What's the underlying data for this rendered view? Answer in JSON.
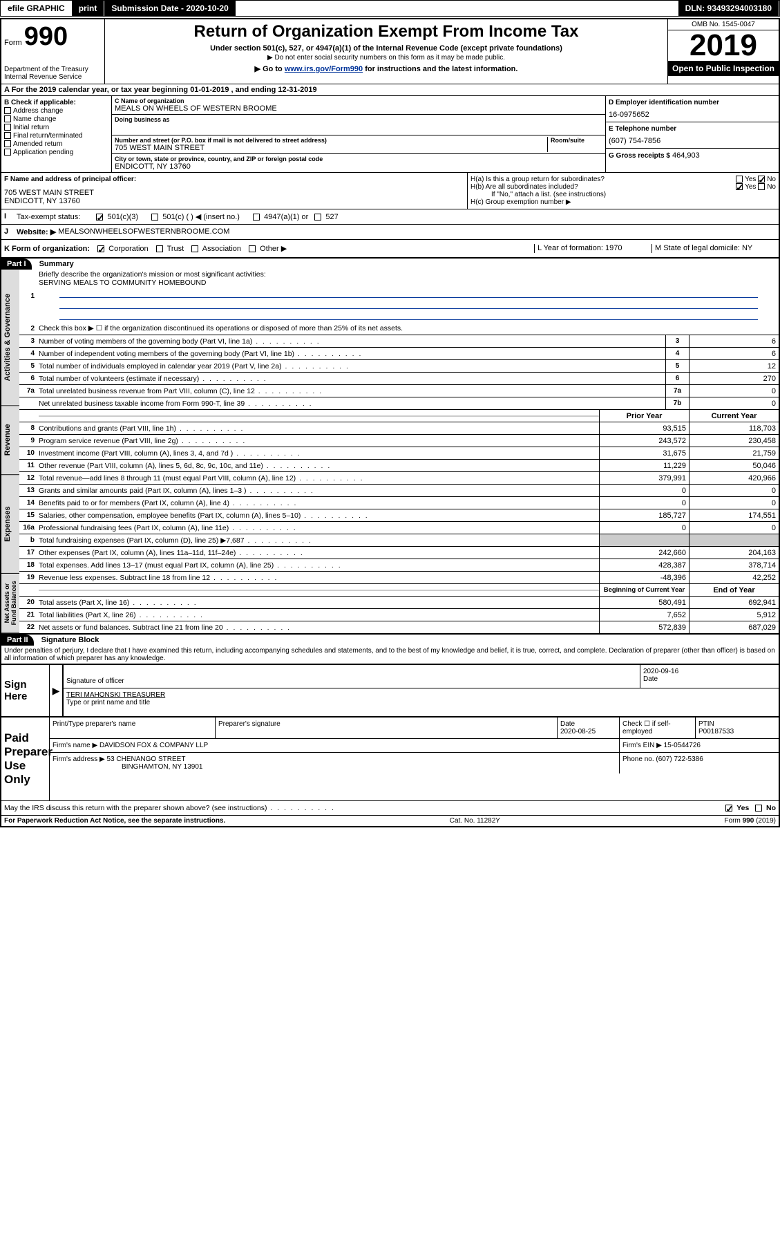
{
  "topbar": {
    "efile": "efile GRAPHIC",
    "print": "print",
    "subdate_label": "Submission Date - 2020-10-20",
    "dln": "DLN: 93493294003180"
  },
  "header": {
    "form_label": "Form",
    "form_num": "990",
    "dept": "Department of the Treasury\nInternal Revenue Service",
    "title": "Return of Organization Exempt From Income Tax",
    "sub1": "Under section 501(c), 527, or 4947(a)(1) of the Internal Revenue Code (except private foundations)",
    "sub2": "▶ Do not enter social security numbers on this form as it may be made public.",
    "goto": "▶ Go to www.irs.gov/Form990 for instructions and the latest information.",
    "omb": "OMB No. 1545-0047",
    "year": "2019",
    "open": "Open to Public Inspection"
  },
  "rowA": "A For the 2019 calendar year, or tax year beginning 01-01-2019   , and ending 12-31-2019",
  "colB": {
    "label": "B Check if applicable:",
    "items": [
      "Address change",
      "Name change",
      "Initial return",
      "Final return/terminated",
      "Amended return",
      "Application pending"
    ]
  },
  "colC": {
    "name_label": "C Name of organization",
    "name": "MEALS ON WHEELS OF WESTERN BROOME",
    "dba_label": "Doing business as",
    "addr_label": "Number and street (or P.O. box if mail is not delivered to street address)",
    "room_label": "Room/suite",
    "addr": "705 WEST MAIN STREET",
    "city_label": "City or town, state or province, country, and ZIP or foreign postal code",
    "city": "ENDICOTT, NY  13760"
  },
  "colD": {
    "ein_label": "D Employer identification number",
    "ein": "16-0975652",
    "tel_label": "E Telephone number",
    "tel": "(607) 754-7856",
    "gross_label": "G Gross receipts $",
    "gross": "464,903"
  },
  "rowF": {
    "label": "F Name and address of principal officer:",
    "addr1": "705 WEST MAIN STREET",
    "addr2": "ENDICOTT, NY  13760"
  },
  "rowH": {
    "ha": "H(a)  Is this a group return for subordinates?",
    "hb": "H(b)  Are all subordinates included?",
    "hb_note": "If \"No,\" attach a list. (see instructions)",
    "hc": "H(c)  Group exemption number ▶"
  },
  "rowI": {
    "label": "Tax-exempt status:",
    "opts": [
      "501(c)(3)",
      "501(c) (  ) ◀ (insert no.)",
      "4947(a)(1) or",
      "527"
    ]
  },
  "rowJ": {
    "label": "Website: ▶",
    "val": "MEALSONWHEELSOFWESTERNBROOME.COM"
  },
  "rowK": {
    "label": "K Form of organization:",
    "opts": [
      "Corporation",
      "Trust",
      "Association",
      "Other ▶"
    ],
    "L": "L Year of formation: 1970",
    "M": "M State of legal domicile: NY"
  },
  "part1": {
    "header": "Part I",
    "title": "Summary",
    "l1": "Briefly describe the organization's mission or most significant activities:",
    "l1v": "SERVING MEALS TO COMMUNITY HOMEBOUND",
    "l2": "Check this box ▶ ☐  if the organization discontinued its operations or disposed of more than 25% of its net assets.",
    "lines_gov": [
      {
        "n": "3",
        "d": "Number of voting members of the governing body (Part VI, line 1a)",
        "ln": "3",
        "v": "6"
      },
      {
        "n": "4",
        "d": "Number of independent voting members of the governing body (Part VI, line 1b)",
        "ln": "4",
        "v": "6"
      },
      {
        "n": "5",
        "d": "Total number of individuals employed in calendar year 2019 (Part V, line 2a)",
        "ln": "5",
        "v": "12"
      },
      {
        "n": "6",
        "d": "Total number of volunteers (estimate if necessary)",
        "ln": "6",
        "v": "270"
      },
      {
        "n": "7a",
        "d": "Total unrelated business revenue from Part VIII, column (C), line 12",
        "ln": "7a",
        "v": "0"
      },
      {
        "n": "",
        "d": "Net unrelated business taxable income from Form 990-T, line 39",
        "ln": "7b",
        "v": "0"
      }
    ],
    "col_prior": "Prior Year",
    "col_current": "Current Year",
    "lines_rev": [
      {
        "n": "8",
        "d": "Contributions and grants (Part VIII, line 1h)",
        "p": "93,515",
        "c": "118,703"
      },
      {
        "n": "9",
        "d": "Program service revenue (Part VIII, line 2g)",
        "p": "243,572",
        "c": "230,458"
      },
      {
        "n": "10",
        "d": "Investment income (Part VIII, column (A), lines 3, 4, and 7d )",
        "p": "31,675",
        "c": "21,759"
      },
      {
        "n": "11",
        "d": "Other revenue (Part VIII, column (A), lines 5, 6d, 8c, 9c, 10c, and 11e)",
        "p": "11,229",
        "c": "50,046"
      },
      {
        "n": "12",
        "d": "Total revenue—add lines 8 through 11 (must equal Part VIII, column (A), line 12)",
        "p": "379,991",
        "c": "420,966"
      }
    ],
    "lines_exp": [
      {
        "n": "13",
        "d": "Grants and similar amounts paid (Part IX, column (A), lines 1–3 )",
        "p": "0",
        "c": "0"
      },
      {
        "n": "14",
        "d": "Benefits paid to or for members (Part IX, column (A), line 4)",
        "p": "0",
        "c": "0"
      },
      {
        "n": "15",
        "d": "Salaries, other compensation, employee benefits (Part IX, column (A), lines 5–10)",
        "p": "185,727",
        "c": "174,551"
      },
      {
        "n": "16a",
        "d": "Professional fundraising fees (Part IX, column (A), line 11e)",
        "p": "0",
        "c": "0"
      },
      {
        "n": "b",
        "d": "Total fundraising expenses (Part IX, column (D), line 25) ▶7,687",
        "p": "",
        "c": "",
        "shade": true
      },
      {
        "n": "17",
        "d": "Other expenses (Part IX, column (A), lines 11a–11d, 11f–24e)",
        "p": "242,660",
        "c": "204,163"
      },
      {
        "n": "18",
        "d": "Total expenses. Add lines 13–17 (must equal Part IX, column (A), line 25)",
        "p": "428,387",
        "c": "378,714"
      },
      {
        "n": "19",
        "d": "Revenue less expenses. Subtract line 18 from line 12",
        "p": "-48,396",
        "c": "42,252"
      }
    ],
    "col_beg": "Beginning of Current Year",
    "col_end": "End of Year",
    "lines_net": [
      {
        "n": "20",
        "d": "Total assets (Part X, line 16)",
        "p": "580,491",
        "c": "692,941"
      },
      {
        "n": "21",
        "d": "Total liabilities (Part X, line 26)",
        "p": "7,652",
        "c": "5,912"
      },
      {
        "n": "22",
        "d": "Net assets or fund balances. Subtract line 21 from line 20",
        "p": "572,839",
        "c": "687,029"
      }
    ]
  },
  "part2": {
    "header": "Part II",
    "title": "Signature Block",
    "perjury": "Under penalties of perjury, I declare that I have examined this return, including accompanying schedules and statements, and to the best of my knowledge and belief, it is true, correct, and complete. Declaration of preparer (other than officer) is based on all information of which preparer has any knowledge."
  },
  "sign": {
    "label": "Sign Here",
    "sig_label": "Signature of officer",
    "date": "2020-09-16",
    "date_label": "Date",
    "name": "TERI MAHONSKI TREASURER",
    "name_label": "Type or print name and title"
  },
  "paid": {
    "label": "Paid Preparer Use Only",
    "prep_name_label": "Print/Type preparer's name",
    "prep_sig_label": "Preparer's signature",
    "date_label": "Date",
    "date": "2020-08-25",
    "check_label": "Check ☐ if self-employed",
    "ptin_label": "PTIN",
    "ptin": "P00187533",
    "firm_name_label": "Firm's name    ▶",
    "firm_name": "DAVIDSON FOX & COMPANY LLP",
    "firm_ein_label": "Firm's EIN ▶",
    "firm_ein": "15-0544726",
    "firm_addr_label": "Firm's address ▶",
    "firm_addr": "53 CHENANGO STREET",
    "firm_city": "BINGHAMTON, NY  13901",
    "phone_label": "Phone no.",
    "phone": "(607) 722-5386"
  },
  "discuss": "May the IRS discuss this return with the preparer shown above? (see instructions)",
  "footer": {
    "left": "For Paperwork Reduction Act Notice, see the separate instructions.",
    "mid": "Cat. No. 11282Y",
    "right": "Form 990 (2019)"
  }
}
